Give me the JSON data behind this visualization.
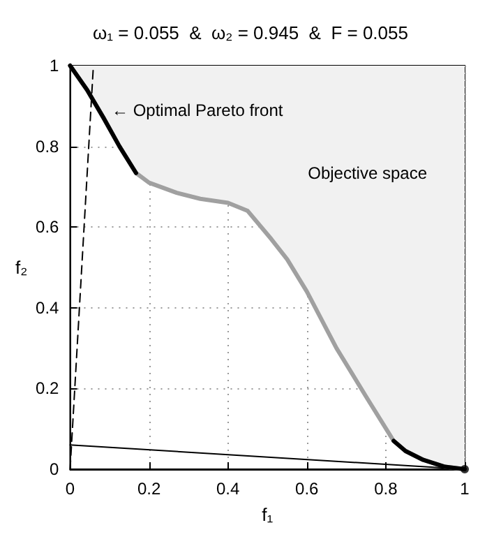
{
  "chart_data": {
    "type": "line",
    "title": "ω₁ = 0.055  &  ω₂ = 0.945  &  F = 0.055",
    "xlabel": "f₁",
    "ylabel": "f₂",
    "xlim": [
      0,
      1
    ],
    "ylim": [
      0,
      1
    ],
    "xticks": [
      0,
      0.2,
      0.4,
      0.6,
      0.8,
      1
    ],
    "yticks": [
      0,
      0.2,
      0.4,
      0.6,
      0.8,
      1
    ],
    "grid": true,
    "marker": "none",
    "annotations": [
      "← Optimal Pareto front",
      "Objective space"
    ],
    "series": [
      {
        "type": "line",
        "color": "#a0a0a0",
        "x": [
          0,
          0.043,
          0.085,
          0.125,
          0.167,
          0.2,
          0.27,
          0.33,
          0.4,
          0.45,
          0.51,
          0.55,
          0.6,
          0.675,
          0.75,
          0.82,
          0.85,
          0.895,
          0.95,
          1
        ],
        "values": [
          1,
          0.94,
          0.87,
          0.8,
          0.734,
          0.71,
          0.685,
          0.67,
          0.66,
          0.64,
          0.57,
          0.52,
          0.44,
          0.3,
          0.18,
          0.07,
          0.045,
          0.023,
          0.006,
          0
        ],
        "lower": [
          1,
          0.94,
          0.87,
          0.8,
          0.734,
          0.71,
          0.685,
          0.67,
          0.66,
          0.64,
          0.57,
          0.52,
          0.44,
          0.3,
          0.18,
          0.07,
          0.045,
          0.023,
          0.006,
          0
        ],
        "upper": [
          1,
          1,
          1,
          1,
          1,
          1,
          1,
          1,
          1,
          1,
          1,
          1,
          1,
          1,
          1,
          1,
          1,
          1,
          1,
          1
        ]
      },
      {
        "color": "#000000",
        "x": [
          0,
          0.043,
          0.085,
          0.125,
          0.167
        ],
        "values": [
          1,
          0.94,
          0.87,
          0.8,
          0.734
        ]
      },
      {
        "color": "#000000",
        "x": [
          0.82,
          0.85,
          0.895,
          0.95,
          1
        ],
        "values": [
          0.07,
          0.045,
          0.023,
          0.006,
          0
        ]
      },
      {
        "color": "#000000",
        "x": [
          0,
          1
        ],
        "values": [
          0.06,
          0
        ]
      },
      {
        "color": "#000000",
        "x": [
          0,
          0.059
        ],
        "values": [
          0,
          1
        ],
        "line_style": "dashed"
      },
      {
        "type": "scatter",
        "color": "#000000",
        "x": [
          1
        ],
        "values": [
          0
        ],
        "marker": "circle"
      }
    ]
  }
}
